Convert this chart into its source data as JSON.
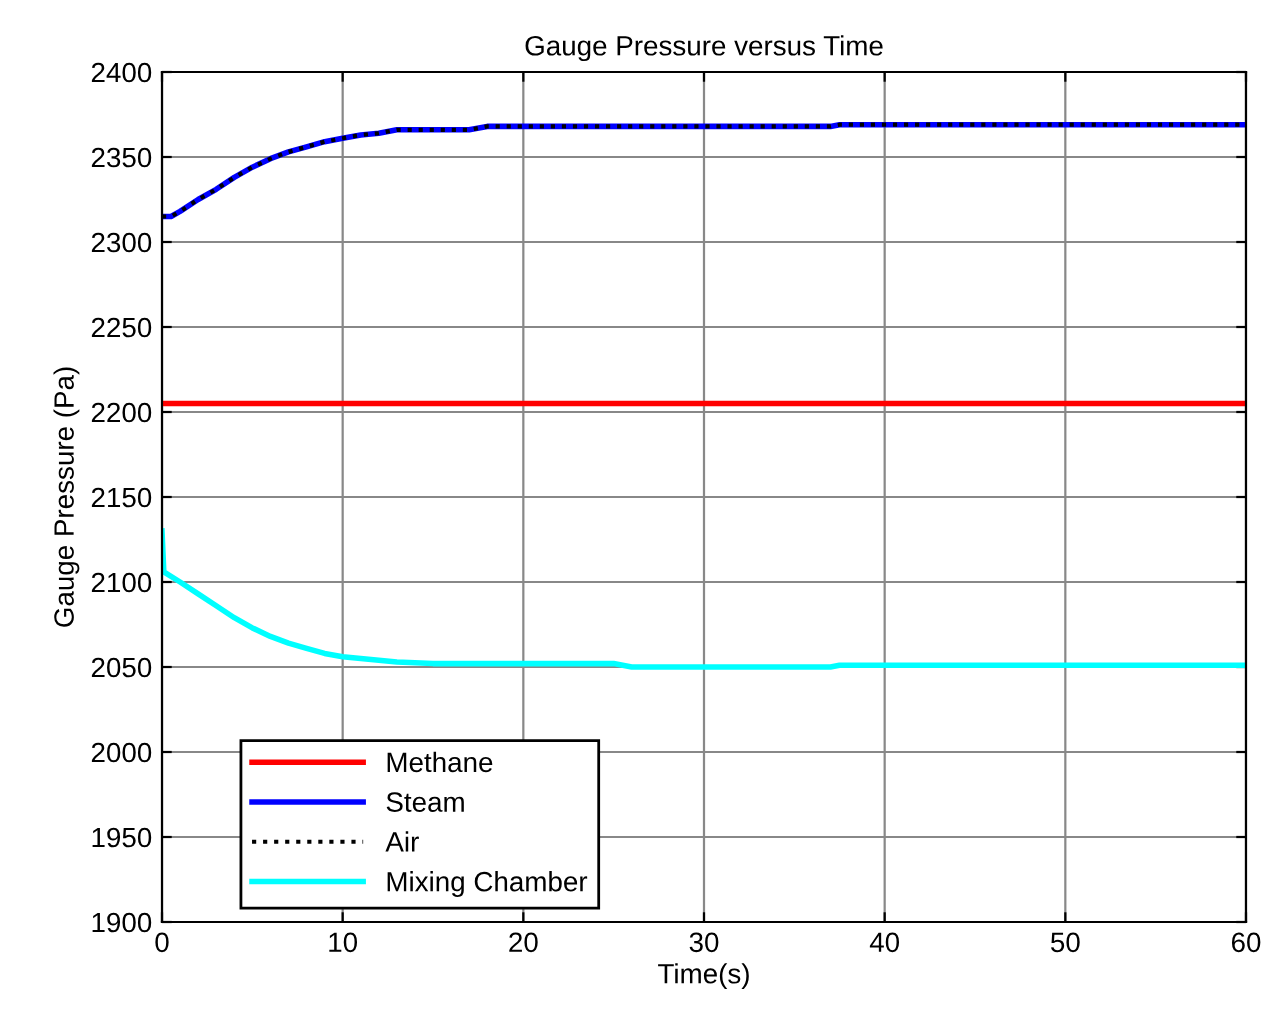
{
  "chart_data": {
    "type": "line",
    "title": "Gauge Pressure versus Time",
    "xlabel": "Time(s)",
    "ylabel": "Gauge Pressure (Pa)",
    "xlim": [
      0,
      60
    ],
    "ylim": [
      1900,
      2400
    ],
    "xticks": [
      0,
      10,
      20,
      30,
      40,
      50,
      60
    ],
    "yticks": [
      1900,
      1950,
      2000,
      2050,
      2100,
      2150,
      2200,
      2250,
      2300,
      2350,
      2400
    ],
    "grid": true,
    "legend": "bottom left",
    "series": [
      {
        "name": "Methane",
        "color": "#ff0000",
        "x": [
          0,
          60
        ],
        "values": [
          2205,
          2205
        ]
      },
      {
        "name": "Steam",
        "color": "#0000ff",
        "x": [
          0,
          0.5,
          1,
          2,
          3,
          4,
          5,
          6,
          7,
          8,
          9,
          10,
          11,
          12,
          13,
          17,
          18,
          37,
          37.5,
          60
        ],
        "values": [
          2315,
          2315,
          2318,
          2325,
          2331,
          2338,
          2344,
          2349,
          2353,
          2356,
          2359,
          2361,
          2363,
          2364,
          2366,
          2366,
          2368,
          2368,
          2369,
          2369
        ]
      },
      {
        "name": "Air",
        "color": "#000000",
        "line_style": "dotted",
        "x": [
          0,
          0.5,
          1,
          2,
          3,
          4,
          5,
          6,
          7,
          8,
          9,
          10,
          11,
          12,
          13,
          17,
          18,
          37,
          37.5,
          60
        ],
        "values": [
          2315,
          2315,
          2318,
          2325,
          2331,
          2338,
          2344,
          2349,
          2353,
          2356,
          2359,
          2361,
          2363,
          2364,
          2366,
          2366,
          2368,
          2368,
          2369,
          2369
        ]
      },
      {
        "name": "Mixing Chamber",
        "color": "#00ffff",
        "x": [
          0,
          0.1,
          1,
          2,
          3,
          4,
          5,
          6,
          7,
          8,
          9,
          10,
          11,
          12,
          13,
          15,
          25,
          26,
          37,
          37.5,
          60
        ],
        "values": [
          2130,
          2106,
          2100,
          2093,
          2086,
          2079,
          2073,
          2068,
          2064,
          2061,
          2058,
          2056,
          2055,
          2054,
          2053,
          2052,
          2052,
          2050,
          2050,
          2051,
          2051
        ]
      }
    ]
  }
}
